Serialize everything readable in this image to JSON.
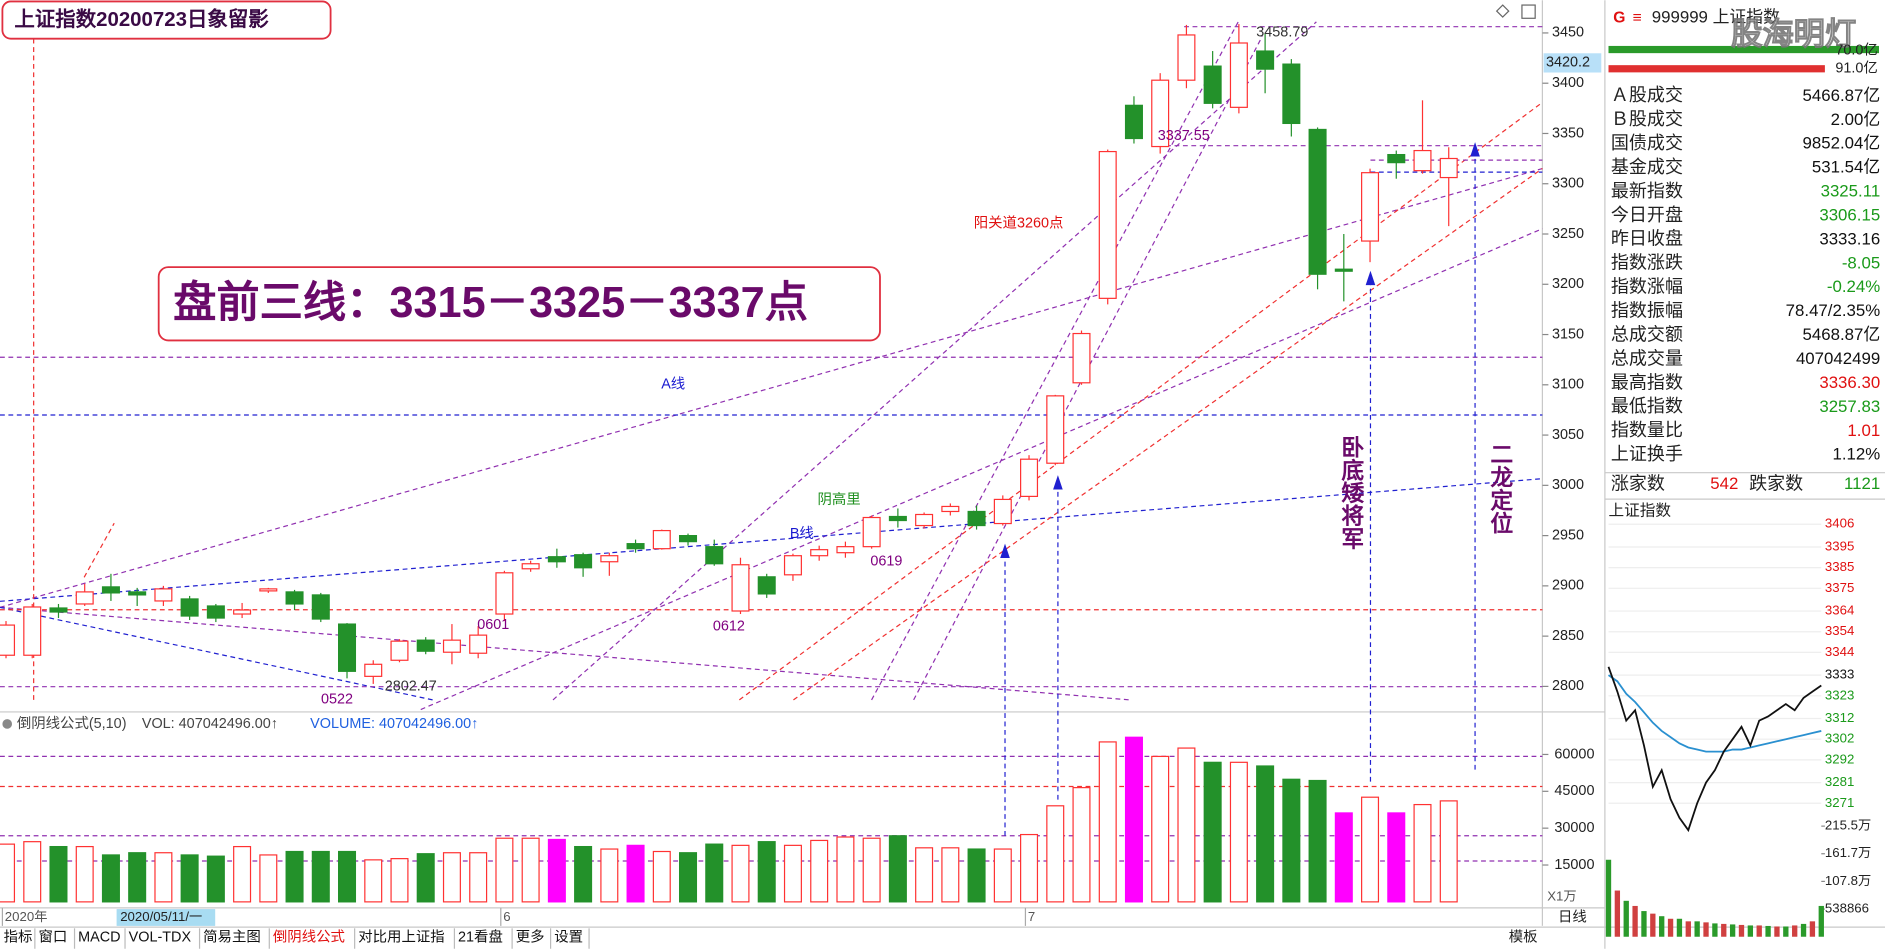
{
  "title_box": "上证指数20200723日象留影",
  "chart_data": {
    "type": "candlestick",
    "categories": [
      "2020年",
      null,
      null,
      null,
      null,
      null,
      null,
      null,
      null,
      null,
      null,
      null,
      null,
      null,
      null,
      null,
      null,
      null,
      null,
      "6",
      null,
      null,
      null,
      null,
      null,
      null,
      null,
      null,
      null,
      null,
      null,
      null,
      null,
      null,
      null,
      null,
      null,
      null,
      null,
      "7",
      null,
      null,
      null,
      null,
      null,
      null,
      null,
      null,
      null,
      null,
      null,
      null,
      null,
      null,
      null,
      null
    ],
    "open": [
      2831,
      2831,
      2878,
      2882,
      2899,
      2894,
      2885,
      2887,
      2880,
      2872,
      2895,
      2894,
      2891,
      2862,
      2810,
      2826,
      2846,
      2834,
      2833,
      2872,
      2917,
      2929,
      2931,
      2924,
      2942,
      2937,
      2950,
      2939,
      2875,
      2909,
      2911,
      2930,
      2933,
      2939,
      2969,
      2960,
      2974,
      2974,
      2962,
      2989,
      3022,
      3102,
      3186,
      3378,
      3337,
      3403,
      3417,
      3376,
      3432,
      3419,
      3354,
      3215,
      3243,
      3329,
      3313,
      3306.15
    ],
    "high": [
      2865,
      2882,
      2882,
      2902,
      2912,
      2898,
      2900,
      2890,
      2882,
      2883,
      2898,
      2896,
      2893,
      2863,
      2826,
      2847,
      2849,
      2862,
      2860,
      2915,
      2925,
      2937,
      2933,
      2933,
      2946,
      2956,
      2952,
      2946,
      2928,
      2912,
      2932,
      2940,
      2944,
      2970,
      2977,
      2973,
      2982,
      2980,
      2990,
      3030,
      3090,
      3154,
      3334,
      3387,
      3410,
      3458,
      3432,
      3458.79,
      3450,
      3424,
      3356,
      3250,
      3315,
      3333,
      3383,
      3336.3
    ],
    "low": [
      2828,
      2828,
      2868,
      2880,
      2885,
      2880,
      2880,
      2866,
      2864,
      2868,
      2893,
      2876,
      2864,
      2808,
      2802.47,
      2824,
      2832,
      2822,
      2828,
      2865,
      2914,
      2918,
      2909,
      2910,
      2933,
      2936,
      2940,
      2920,
      2872,
      2888,
      2905,
      2925,
      2928,
      2937,
      2958,
      2957,
      2970,
      2956,
      2960,
      2985,
      3020,
      3100,
      3180,
      3340,
      3330,
      3395,
      3375,
      3370,
      3390,
      3347,
      3195,
      3183,
      3222,
      3305,
      3310,
      3257.83
    ],
    "close": [
      2861,
      2879,
      2874,
      2894,
      2893,
      2891,
      2897,
      2870,
      2868,
      2876,
      2897,
      2882,
      2867,
      2815,
      2822,
      2845,
      2835,
      2846,
      2851,
      2913,
      2922,
      2924,
      2918,
      2930,
      2937,
      2955,
      2944,
      2922,
      2921,
      2892,
      2930,
      2936,
      2939,
      2968,
      2965,
      2971,
      2979,
      2960,
      2986,
      3026,
      3089,
      3151,
      3332,
      3345,
      3403,
      3448,
      3380,
      3440,
      3414,
      3360,
      3210,
      3213,
      3311,
      3321,
      3333,
      3325.11
    ],
    "up_color": "#ff3232",
    "down_color": "#23912a",
    "ylim": [
      2777,
      3461
    ],
    "yticks": [
      2800,
      2850,
      2900,
      2950,
      3000,
      3050,
      3100,
      3150,
      3200,
      3250,
      3300,
      3350,
      3400,
      3450
    ],
    "cursor_price": 3420.2,
    "cursor_date": "2020/05/11/一",
    "annotations": [
      {
        "text": "3458.79",
        "color": "#333"
      },
      {
        "text": "3337.55",
        "color": "#800080"
      },
      {
        "text": "阳关道3260点",
        "color": "#e01010"
      },
      {
        "text": "A线",
        "color": "#1a1ad0"
      },
      {
        "text": "B线",
        "color": "#1a1ad0"
      },
      {
        "text": "阴高里",
        "color": "#209020"
      },
      {
        "text": "0619",
        "color": "#800080"
      },
      {
        "text": "0612",
        "color": "#800080"
      },
      {
        "text": "0601",
        "color": "#800080"
      },
      {
        "text": "0522",
        "color": "#800080"
      },
      {
        "text": "2802.47",
        "color": "#333"
      }
    ],
    "headline": "盘前三线：3315－3325－3337点",
    "vertical_notes": [
      "卧底矮将军",
      "二龙定位"
    ],
    "volume": {
      "formula": "倒阴线公式(5,10)",
      "vol_label": "VOL: 407042496.00↑",
      "volume_label": "VOLUME: 407042496.00↑",
      "unit": "X1万",
      "values": [
        23500,
        24500,
        22500,
        22500,
        19100,
        20000,
        20000,
        19100,
        18600,
        22500,
        19100,
        20500,
        20500,
        20500,
        17100,
        17600,
        19600,
        20000,
        20000,
        25900,
        25900,
        25400,
        22500,
        21500,
        23000,
        20500,
        20000,
        23500,
        23000,
        24500,
        23000,
        25000,
        26400,
        25900,
        26900,
        22000,
        22000,
        21500,
        21500,
        27400,
        39100,
        46500,
        65100,
        67000,
        59200,
        62600,
        56800,
        56800,
        55300,
        49900,
        49400,
        36200,
        42600,
        36200,
        39600,
        41100
      ],
      "colors": [
        "#ff3232",
        "#ff3232",
        "#23912a",
        "#ff3232",
        "#23912a",
        "#23912a",
        "#ff3232",
        "#23912a",
        "#23912a",
        "#ff3232",
        "#ff3232",
        "#23912a",
        "#23912a",
        "#23912a",
        "#ff3232",
        "#ff3232",
        "#23912a",
        "#ff3232",
        "#ff3232",
        "#ff3232",
        "#ff3232",
        "#ff00ff",
        "#23912a",
        "#ff3232",
        "#ff00ff",
        "#ff3232",
        "#23912a",
        "#23912a",
        "#ff3232",
        "#23912a",
        "#ff3232",
        "#ff3232",
        "#ff3232",
        "#ff3232",
        "#23912a",
        "#ff3232",
        "#ff3232",
        "#23912a",
        "#ff3232",
        "#ff3232",
        "#ff3232",
        "#ff3232",
        "#ff3232",
        "#ff00ff",
        "#ff3232",
        "#ff3232",
        "#23912a",
        "#ff3232",
        "#23912a",
        "#23912a",
        "#23912a",
        "#ff00ff",
        "#ff3232",
        "#ff00ff",
        "#ff3232",
        "#ff3232"
      ],
      "ylim": [
        0,
        68500
      ],
      "yticks": [
        15000,
        30000,
        45000,
        60000
      ]
    }
  },
  "toolbar": {
    "tabs": [
      "指标",
      "窗口",
      "MACD",
      "VOL-TDX",
      "简易主图",
      "倒阴线公式",
      "对比用上证指",
      "21看盘",
      "更多",
      "设置"
    ],
    "active": 5,
    "template": "模板",
    "period": "日线"
  },
  "info_panel": {
    "code": "G",
    "menu": "≡",
    "name": "999999 上证指数",
    "watermark": "股海明灯",
    "top_values": [
      "70.0亿",
      "91.0亿"
    ],
    "rows": [
      {
        "label": "Ａ股成交",
        "value": "5466.87亿",
        "color": "#111"
      },
      {
        "label": "Ｂ股成交",
        "value": "2.00亿",
        "color": "#111"
      },
      {
        "label": "国债成交",
        "value": "9852.04亿",
        "color": "#111"
      },
      {
        "label": "基金成交",
        "value": "531.54亿",
        "color": "#111"
      },
      {
        "label": "最新指数",
        "value": "3325.11",
        "color": "#1a9a1a"
      },
      {
        "label": "今日开盘",
        "value": "3306.15",
        "color": "#1a9a1a"
      },
      {
        "label": "昨日收盘",
        "value": "3333.16",
        "color": "#111"
      },
      {
        "label": "指数涨跌",
        "value": "-8.05",
        "color": "#1a9a1a"
      },
      {
        "label": "指数涨幅",
        "value": "-0.24%",
        "color": "#1a9a1a"
      },
      {
        "label": "指数振幅",
        "value": "78.47/2.35%",
        "color": "#111"
      },
      {
        "label": "总成交额",
        "value": "5468.87亿",
        "color": "#111"
      },
      {
        "label": "总成交量",
        "value": "407042499",
        "color": "#111"
      },
      {
        "label": "最高指数",
        "value": "3336.30",
        "color": "#e01010"
      },
      {
        "label": "最低指数",
        "value": "3257.83",
        "color": "#1a9a1a"
      },
      {
        "label": "指数量比",
        "value": "1.01",
        "color": "#e01010"
      },
      {
        "label": "上证换手",
        "value": "1.12%",
        "color": "#111"
      }
    ],
    "breadth": {
      "up_label": "涨家数",
      "up": 542,
      "down_label": "跌家数",
      "down": 1121
    }
  },
  "minute_chart": {
    "title": "上证指数",
    "price": [
      3337,
      3325,
      3311,
      3316,
      3299,
      3279,
      3287,
      3273,
      3264,
      3258,
      3271,
      3281,
      3287,
      3296,
      3302,
      3308,
      3299,
      3311,
      3313,
      3316,
      3319,
      3316,
      3322,
      3325,
      3328
    ],
    "average": [
      3333,
      3330,
      3324,
      3320,
      3315,
      3310,
      3306,
      3303,
      3300,
      3298,
      3297,
      3296,
      3296,
      3296,
      3297,
      3297,
      3298,
      3299,
      3300,
      3301,
      3302,
      3303,
      3304,
      3305,
      3306
    ],
    "ylim": [
      3255,
      3410
    ],
    "yticks": [
      3406,
      3395,
      3385,
      3375,
      3364,
      3354,
      3344,
      3333,
      3323,
      3312,
      3302,
      3292,
      3281,
      3271
    ],
    "ytick_colors": [
      "#e01010",
      "#e01010",
      "#e01010",
      "#e01010",
      "#e01010",
      "#e01010",
      "#e01010",
      "#111",
      "#1a9a1a",
      "#1a9a1a",
      "#1a9a1a",
      "#1a9a1a",
      "#1a9a1a",
      "#1a9a1a"
    ],
    "volume": [
      1500000,
      900000,
      700000,
      600000,
      500000,
      450000,
      400000,
      350000,
      350000,
      300000,
      300000,
      280000,
      260000,
      250000,
      240000,
      230000,
      220000,
      220000,
      210000,
      200000,
      200000,
      220000,
      250000,
      300000,
      600000
    ],
    "vlim": [
      0,
      2155000
    ],
    "vticks": [
      {
        "value": 2155000,
        "label": "215.5万"
      },
      {
        "value": 1617000,
        "label": "161.7万"
      },
      {
        "value": 1078000,
        "label": "107.8万"
      },
      538866
    ]
  }
}
